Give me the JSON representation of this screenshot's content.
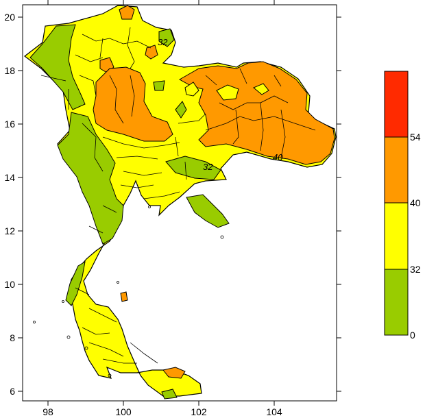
{
  "map": {
    "x_ticks": [
      "98",
      "100",
      "102",
      "104"
    ],
    "y_ticks": [
      "20",
      "18",
      "16",
      "14",
      "12",
      "10",
      "8",
      "6"
    ],
    "contour_labels": [
      "32",
      "40",
      "32"
    ],
    "lon_range": [
      97.4,
      105.7
    ],
    "lat_range": [
      5.6,
      20.6
    ]
  },
  "legend": {
    "colors": [
      "#ff2a00",
      "#ff9900",
      "#ffff00",
      "#99cc00"
    ],
    "labels": [
      "54",
      "40",
      "32",
      "0"
    ]
  }
}
